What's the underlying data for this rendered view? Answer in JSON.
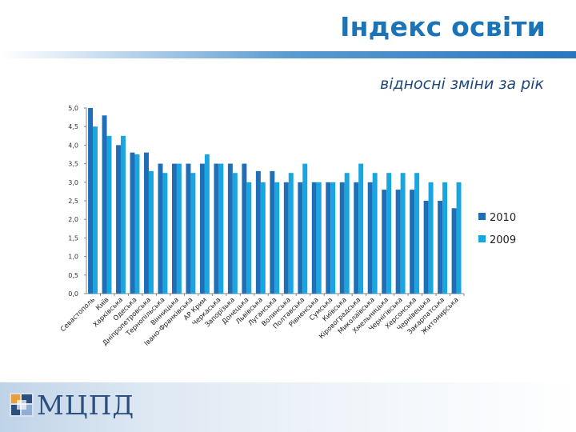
{
  "slide": {
    "title": "Індекс освіти",
    "subtitle": "відносні зміни за рік",
    "logo_text": "МЦПД"
  },
  "colors": {
    "accent": "#1b73b8",
    "series_2010": "#1f6fb7",
    "series_2009": "#19a5e0"
  },
  "chart_data": {
    "type": "bar",
    "title": "",
    "xlabel": "",
    "ylabel": "",
    "ylim": [
      0,
      5
    ],
    "yticks": [
      "0,0",
      "0,5",
      "1,0",
      "1,5",
      "2,0",
      "2,5",
      "3,0",
      "3,5",
      "4,0",
      "4,5",
      "5,0"
    ],
    "grid": false,
    "legend": "right",
    "categories": [
      "Севастополь",
      "Київ",
      "Харківська",
      "Одеська",
      "Дніпропетровська",
      "Тернопільська",
      "Вінницька",
      "Івано-Франківська",
      "АР Крим",
      "Черкаська",
      "Запорізька",
      "Донецька",
      "Львівська",
      "Луганська",
      "Волинська",
      "Полтавська",
      "Рівненська",
      "Сумська",
      "Київська",
      "Кіровоградська",
      "Миколаївська",
      "Хмельницька",
      "Чернігівська",
      "Херсонська",
      "Чернівецька",
      "Закарпатська",
      "Житомирська"
    ],
    "series": [
      {
        "name": "2010",
        "values": [
          5.0,
          4.8,
          4.0,
          3.8,
          3.8,
          3.5,
          3.5,
          3.5,
          3.5,
          3.5,
          3.5,
          3.5,
          3.3,
          3.3,
          3.0,
          3.0,
          3.0,
          3.0,
          3.0,
          3.0,
          3.0,
          2.8,
          2.8,
          2.8,
          2.5,
          2.5,
          2.3
        ]
      },
      {
        "name": "2009",
        "values": [
          4.5,
          4.25,
          4.25,
          3.75,
          3.3,
          3.25,
          3.5,
          3.25,
          3.75,
          3.5,
          3.25,
          3.0,
          3.0,
          3.0,
          3.25,
          3.5,
          3.0,
          3.0,
          3.25,
          3.5,
          3.25,
          3.25,
          3.25,
          3.25,
          3.0,
          3.0,
          3.0
        ]
      }
    ]
  }
}
